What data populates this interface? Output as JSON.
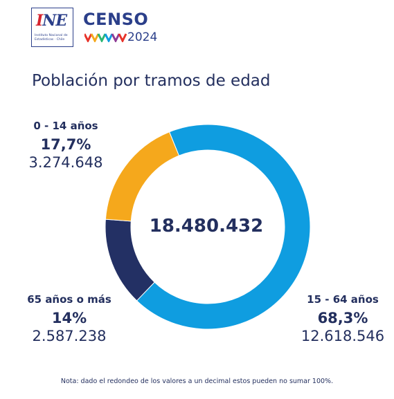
{
  "logos": {
    "ine_word": "INE",
    "ine_subtitle": "Instituto Nacional de Estadísticas · Chile",
    "censo_word": "CENSO",
    "censo_year": "2024"
  },
  "colors": {
    "accent": "#232f5e",
    "segment_0_14": "#f5a81c",
    "segment_15_64": "#0f9de0",
    "segment_65_plus": "#233064"
  },
  "chart_data": {
    "type": "pie",
    "style": "donut",
    "title": "Población por tramos de edad",
    "total": "18.480.432",
    "series": [
      {
        "name": "15 - 64 años",
        "percent": 68.3,
        "percent_label": "68,3%",
        "value": 12618546,
        "value_label": "12.618.546"
      },
      {
        "name": "65 años o más",
        "percent": 14.0,
        "percent_label": "14%",
        "value": 2587238,
        "value_label": "2.587.238"
      },
      {
        "name": "0 - 14 años",
        "percent": 17.7,
        "percent_label": "17,7%",
        "value": 3274648,
        "value_label": "3.274.648"
      }
    ]
  },
  "note": "Nota: dado el redondeo de los valores a un decimal estos pueden no sumar 100%."
}
